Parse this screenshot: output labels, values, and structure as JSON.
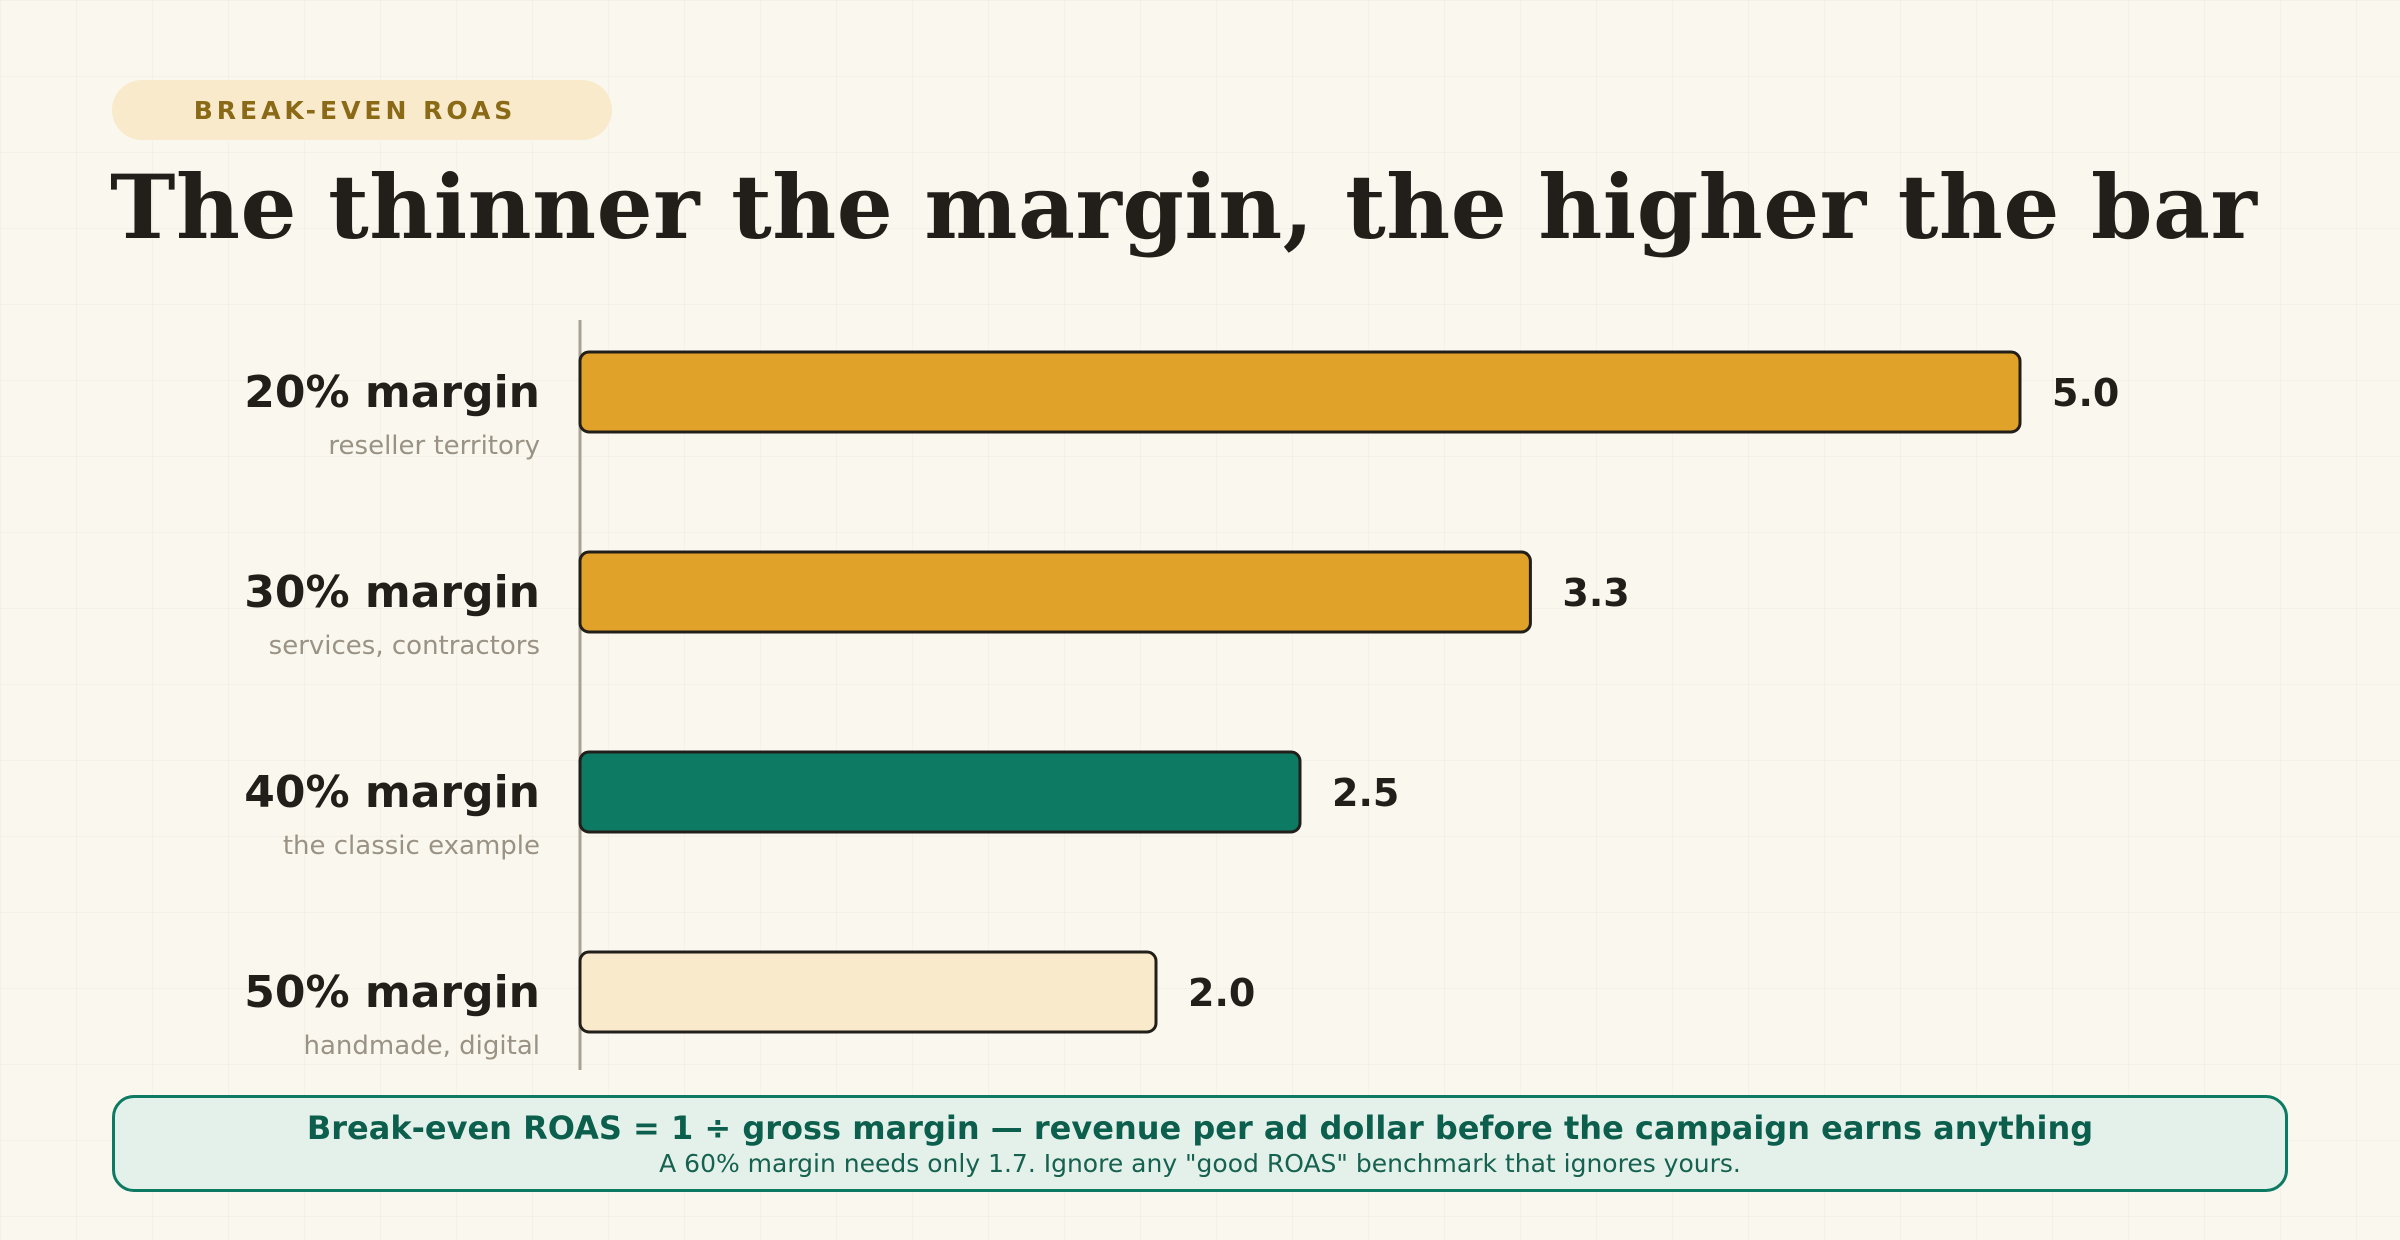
{
  "badge": "BREAK-EVEN ROAS",
  "headline": "The thinner the margin, the higher the bar",
  "chart_data": {
    "type": "bar",
    "orientation": "horizontal",
    "categories": [
      "20% margin",
      "30% margin",
      "40% margin",
      "50% margin"
    ],
    "sublabels": [
      "reseller territory",
      "services, contractors",
      "the classic example",
      "handmade, digital"
    ],
    "values": [
      5.0,
      3.3,
      2.5,
      2.0
    ],
    "value_labels": [
      "5.0",
      "3.3",
      "2.5",
      "2.0"
    ],
    "bar_colors": [
      "#e0a229",
      "#e0a229",
      "#0d7a63",
      "#f8eacb"
    ],
    "xlim": [
      0,
      5.0
    ],
    "grid": false,
    "legend": "none"
  },
  "callout": {
    "main": "Break-even ROAS = 1 ÷ gross margin — revenue per ad dollar before the campaign earns anything",
    "sub": "A 60% margin needs only 1.7. Ignore any \"good ROAS\" benchmark that ignores yours."
  },
  "colors": {
    "background": "#faf7ee",
    "ink": "#221f1a",
    "accent_amber": "#e0a229",
    "accent_green": "#0d7a63",
    "cream": "#f8eacb",
    "muted": "#9a9385"
  }
}
